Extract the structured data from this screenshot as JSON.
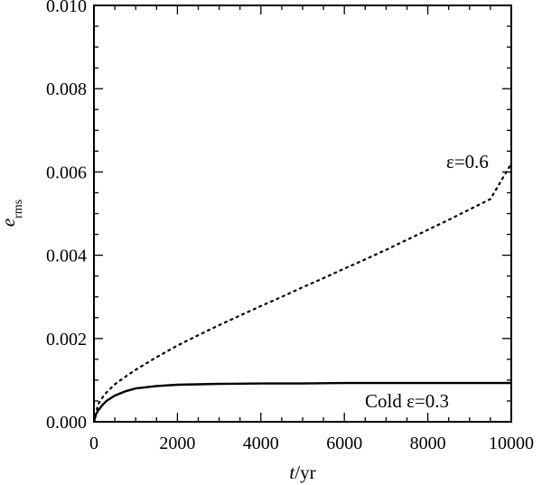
{
  "chart_data": {
    "type": "line",
    "xlabel_italic": "t",
    "xlabel_rest": "/yr",
    "ylabel_italic": "e",
    "ylabel_sub": "rms",
    "xlim": [
      0,
      10000
    ],
    "ylim": [
      0.0,
      0.01
    ],
    "grid": false,
    "x_ticks": [
      0,
      2000,
      4000,
      6000,
      8000,
      10000
    ],
    "x_tick_labels": [
      "0",
      "2000",
      "4000",
      "6000",
      "8000",
      "10000"
    ],
    "y_ticks": [
      0.0,
      0.002,
      0.004,
      0.006,
      0.008,
      0.01
    ],
    "y_tick_labels": [
      "0.000",
      "0.002",
      "0.004",
      "0.006",
      "0.008",
      "0.010"
    ],
    "series": [
      {
        "style": "dotted",
        "x": [
          0,
          100,
          250,
          500,
          750,
          1000,
          1500,
          2000,
          2500,
          3000,
          3500,
          4000,
          4500,
          5000,
          5500,
          6000,
          6500,
          7000,
          7500,
          8000,
          8500,
          9000,
          9500,
          10000
        ],
        "y": [
          0.0,
          0.00042,
          0.00065,
          0.0009,
          0.00108,
          0.00125,
          0.00155,
          0.00183,
          0.00208,
          0.00232,
          0.00255,
          0.00278,
          0.003,
          0.00323,
          0.00345,
          0.00368,
          0.0039,
          0.00413,
          0.00437,
          0.00461,
          0.00485,
          0.0051,
          0.00535,
          0.0062
        ]
      },
      {
        "style": "solid",
        "x": [
          0,
          50,
          100,
          200,
          300,
          500,
          750,
          1000,
          1500,
          2000,
          3000,
          4000,
          5000,
          6000,
          7000,
          8000,
          9000,
          10000
        ],
        "y": [
          0.0,
          0.00018,
          0.00027,
          0.0004,
          0.0005,
          0.00063,
          0.00073,
          0.0008,
          0.00086,
          0.00089,
          0.00091,
          0.00092,
          0.00092,
          0.00093,
          0.00093,
          0.00093,
          0.00093,
          0.00093
        ]
      }
    ],
    "annotations": [
      {
        "text": "ε=0.6",
        "x": 8950,
        "y": 0.0061
      },
      {
        "text": "Cold ε=0.3",
        "x": 7500,
        "y": 0.00035
      }
    ]
  }
}
